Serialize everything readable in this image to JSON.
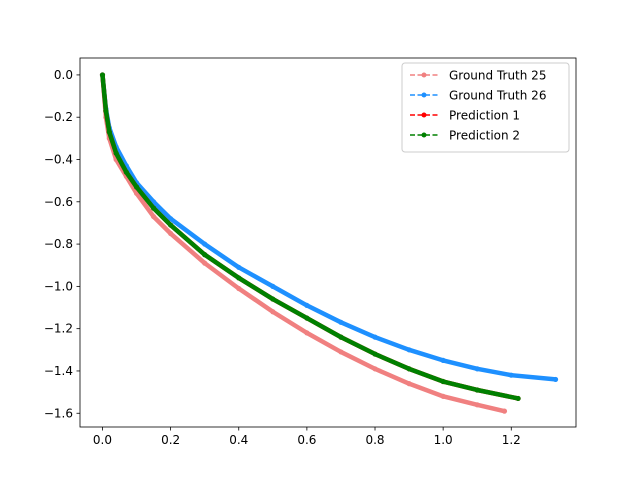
{
  "chart_data": {
    "type": "line",
    "title": "",
    "xlabel": "",
    "ylabel": "",
    "xlim": [
      -0.066,
      1.39
    ],
    "ylim": [
      -1.665,
      0.08
    ],
    "grid": false,
    "legend_placement": "top-right",
    "x_ticks": [
      {
        "value": 0.0,
        "label": "0.0"
      },
      {
        "value": 0.2,
        "label": "0.2"
      },
      {
        "value": 0.4,
        "label": "0.4"
      },
      {
        "value": 0.6,
        "label": "0.6"
      },
      {
        "value": 0.8,
        "label": "0.8"
      },
      {
        "value": 1.0,
        "label": "1.0"
      },
      {
        "value": 1.2,
        "label": "1.2"
      }
    ],
    "y_ticks": [
      {
        "value": 0.0,
        "label": "0.0"
      },
      {
        "value": -0.2,
        "label": "−0.2"
      },
      {
        "value": -0.4,
        "label": "−0.4"
      },
      {
        "value": -0.6,
        "label": "−0.6"
      },
      {
        "value": -0.8,
        "label": "−0.8"
      },
      {
        "value": -1.0,
        "label": "−1.0"
      },
      {
        "value": -1.2,
        "label": "−1.2"
      },
      {
        "value": -1.4,
        "label": "−1.4"
      },
      {
        "value": -1.6,
        "label": "−1.6"
      }
    ],
    "series": [
      {
        "name": "Ground Truth 25",
        "color": "#f08080",
        "x": [
          0.0,
          0.01,
          0.02,
          0.04,
          0.07,
          0.1,
          0.15,
          0.2,
          0.3,
          0.4,
          0.5,
          0.6,
          0.7,
          0.8,
          0.9,
          1.0,
          1.1,
          1.18
        ],
        "y": [
          0.0,
          -0.2,
          -0.3,
          -0.4,
          -0.48,
          -0.56,
          -0.67,
          -0.75,
          -0.89,
          -1.01,
          -1.12,
          -1.22,
          -1.31,
          -1.39,
          -1.46,
          -1.52,
          -1.56,
          -1.59
        ]
      },
      {
        "name": "Ground Truth 26",
        "color": "#1e90ff",
        "x": [
          0.0,
          0.01,
          0.02,
          0.04,
          0.07,
          0.1,
          0.15,
          0.2,
          0.3,
          0.4,
          0.5,
          0.6,
          0.7,
          0.8,
          0.9,
          1.0,
          1.1,
          1.2,
          1.33
        ],
        "y": [
          0.0,
          -0.16,
          -0.25,
          -0.34,
          -0.43,
          -0.51,
          -0.6,
          -0.68,
          -0.8,
          -0.91,
          -1.0,
          -1.09,
          -1.17,
          -1.24,
          -1.3,
          -1.35,
          -1.39,
          -1.42,
          -1.44
        ]
      },
      {
        "name": "Prediction 1",
        "color": "#ff0000",
        "x": [
          0.0,
          0.01,
          0.02,
          0.04,
          0.07,
          0.1,
          0.15,
          0.2,
          0.3,
          0.4,
          0.5,
          0.6,
          0.7,
          0.8,
          0.9,
          1.0,
          1.1,
          1.22
        ],
        "y": [
          0.0,
          -0.17,
          -0.27,
          -0.37,
          -0.46,
          -0.53,
          -0.63,
          -0.71,
          -0.85,
          -0.96,
          -1.06,
          -1.15,
          -1.24,
          -1.32,
          -1.39,
          -1.45,
          -1.49,
          -1.53
        ]
      },
      {
        "name": "Prediction 2",
        "color": "#008000",
        "x": [
          0.0,
          0.01,
          0.02,
          0.04,
          0.07,
          0.1,
          0.15,
          0.2,
          0.3,
          0.4,
          0.5,
          0.6,
          0.7,
          0.8,
          0.9,
          1.0,
          1.1,
          1.22
        ],
        "y": [
          0.0,
          -0.17,
          -0.27,
          -0.37,
          -0.46,
          -0.53,
          -0.63,
          -0.71,
          -0.85,
          -0.96,
          -1.06,
          -1.15,
          -1.24,
          -1.32,
          -1.39,
          -1.45,
          -1.49,
          -1.53
        ]
      }
    ]
  }
}
